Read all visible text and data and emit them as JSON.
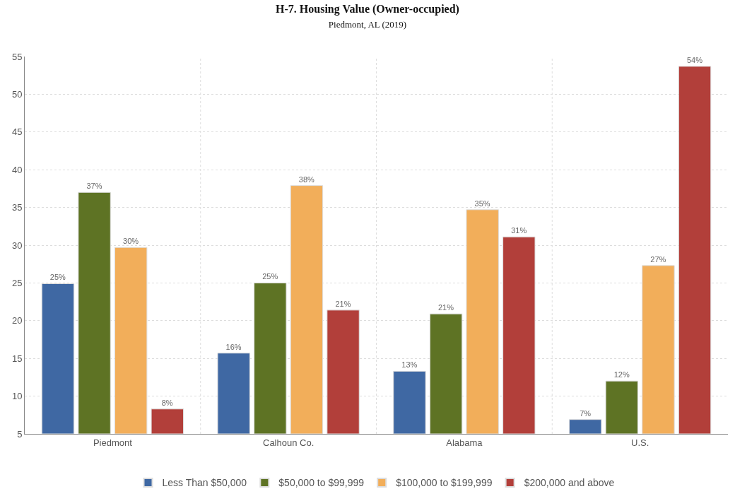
{
  "chart_data": {
    "type": "bar",
    "title": "H-7. Housing Value (Owner-occupied)",
    "subtitle": "Piedmont, AL (2019)",
    "categories": [
      "Piedmont",
      "Calhoun Co.",
      "Alabama",
      "U.S."
    ],
    "series": [
      {
        "name": "Less Than $50,000",
        "color": "#3f68a3",
        "values": [
          24.9,
          15.7,
          13.3,
          6.9
        ],
        "value_labels": [
          "25%",
          "16%",
          "13%",
          "7%"
        ]
      },
      {
        "name": "$50,000 to $99,999",
        "color": "#5e7324",
        "values": [
          37.0,
          25.0,
          20.9,
          12.0
        ],
        "value_labels": [
          "37%",
          "25%",
          "21%",
          "12%"
        ]
      },
      {
        "name": "$100,000 to $199,999",
        "color": "#f2ae5a",
        "values": [
          29.7,
          37.9,
          34.7,
          27.3
        ],
        "value_labels": [
          "30%",
          "38%",
          "35%",
          "27%"
        ]
      },
      {
        "name": "$200,000 and above",
        "color": "#b23f3a",
        "values": [
          8.3,
          21.4,
          31.1,
          53.7
        ],
        "value_labels": [
          "8%",
          "21%",
          "31%",
          "54%"
        ]
      }
    ],
    "ylim": [
      5,
      55
    ],
    "yticks": [
      5,
      10,
      15,
      20,
      25,
      30,
      35,
      40,
      45,
      50,
      55
    ],
    "grid": true,
    "legend": "bottom"
  }
}
